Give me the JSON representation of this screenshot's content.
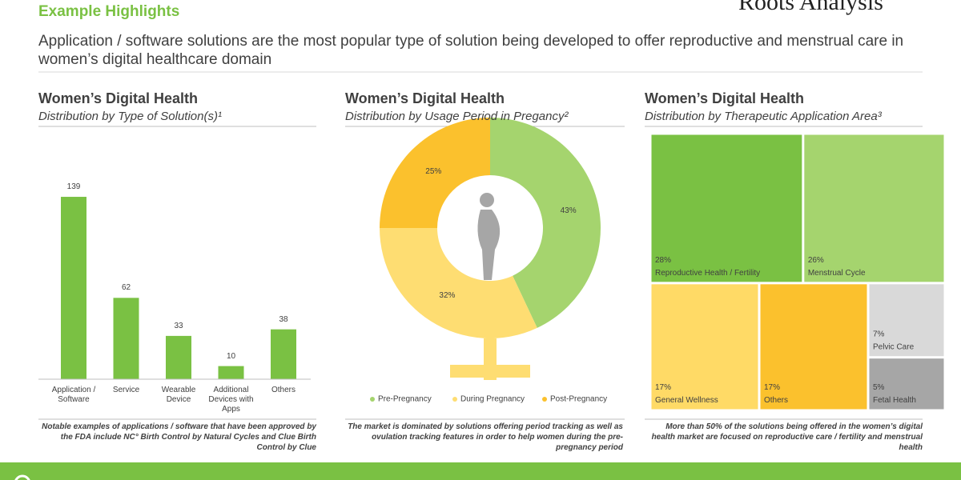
{
  "header": {
    "title": "Example Highlights",
    "subtitle": "Application / software solutions are the most popular type of solution being developed to offer reproductive and menstrual care in women’s digital healthcare domain",
    "logo": "Roots Analysis"
  },
  "chart_data": [
    {
      "type": "bar",
      "title": "Women’s Digital Health",
      "subtitle": "Distribution by Type of Solution(s)¹",
      "categories": [
        "Application / Software",
        "Service",
        "Wearable Device",
        "Additional Devices with Apps",
        "Others"
      ],
      "values": [
        139,
        62,
        33,
        10,
        38
      ],
      "color": "#7ac143",
      "note": "Notable examples of applications / software that have been approved by the FDA include NC° Birth Control by Natural Cycles and Clue Birth Control by Clue"
    },
    {
      "type": "pie",
      "title": "Women’s Digital Health",
      "subtitle": "Distribution by Usage Period in Pregancy²",
      "categories": [
        "Pre-Pregnancy",
        "During Pregnancy",
        "Post-Pregnancy"
      ],
      "values": [
        43,
        32,
        25
      ],
      "value_labels": [
        "43%",
        "32%",
        "25%"
      ],
      "colors": [
        "#a5d46e",
        "#fedd72",
        "#fbc12d"
      ],
      "legend": "bottom",
      "note": "The market is dominated by solutions offering period tracking as well as ovulation tracking features in order to help women during the pre-pregnancy period"
    },
    {
      "type": "treemap",
      "title": "Women’s Digital Health",
      "subtitle": "Distribution by Therapeutic Application Area³",
      "categories": [
        "Reproductive Health / Fertility",
        "Menstrual Cycle",
        "General Wellness",
        "Others",
        "Pelvic Care",
        "Fetal Health"
      ],
      "values": [
        28,
        26,
        17,
        17,
        7,
        5
      ],
      "value_labels": [
        "28%",
        "26%",
        "17%",
        "17%",
        "7%",
        "5%"
      ],
      "colors": [
        "#7ac143",
        "#a5d46e",
        "#ffda66",
        "#fbc12d",
        "#d9d9d9",
        "#a6a6a6"
      ],
      "note": "More than 50% of the solutions being offered in the women’s digital health market are focused on reproductive care / fertility and menstrual health"
    }
  ]
}
